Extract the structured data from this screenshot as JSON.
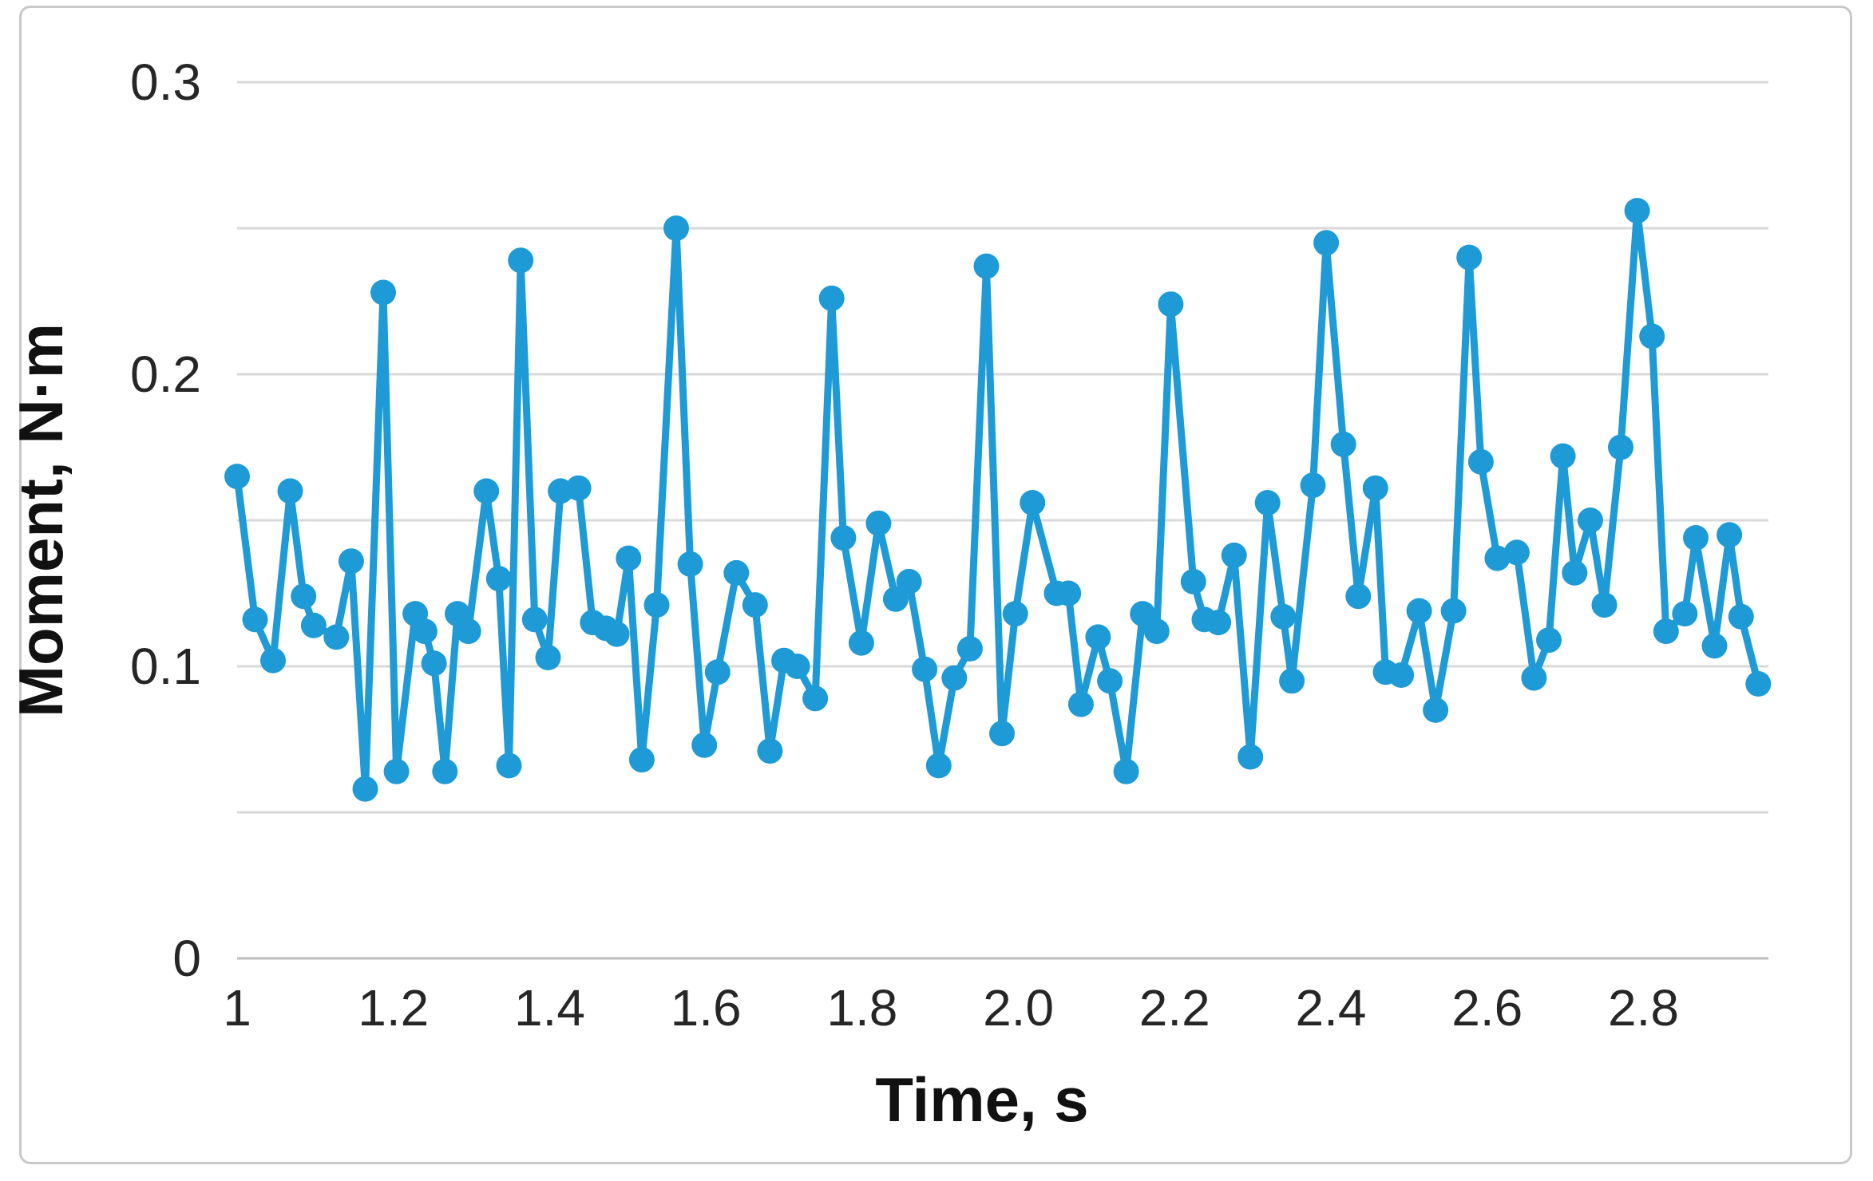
{
  "page": {
    "background_color": "#ffffff",
    "frame_border_color": "#c9c9c9"
  },
  "chart_data": {
    "type": "line",
    "title": "",
    "xlabel": "Time, s",
    "ylabel": "Moment, N·m",
    "xlim": [
      1.0,
      2.96
    ],
    "ylim": [
      0,
      0.3
    ],
    "grid": "horizontal-only",
    "legend": "none",
    "x_tick_values": [
      1,
      1.2,
      1.4,
      1.6,
      1.8,
      2.0,
      2.2,
      2.4,
      2.6,
      2.8
    ],
    "x_tick_labels": [
      "1",
      "1.2",
      "1.4",
      "1.6",
      "1.8",
      "2.0",
      "2.2",
      "2.4",
      "2.6",
      "2.8"
    ],
    "y_tick_values": [
      0,
      0.1,
      0.2,
      0.3
    ],
    "y_tick_labels": [
      "0",
      "0.1",
      "0.2",
      "0.3"
    ],
    "y_gridline_values": [
      0,
      0.05,
      0.1,
      0.15,
      0.2,
      0.25,
      0.3
    ],
    "gridline_color": "#d9d9d9",
    "axis_line_color": "#bdbdbd",
    "series": [
      {
        "name": "Moment",
        "color": "#1e9ad6",
        "marker": "circle",
        "points": [
          [
            1.0,
            0.165
          ],
          [
            1.023,
            0.116
          ],
          [
            1.046,
            0.102
          ],
          [
            1.068,
            0.16
          ],
          [
            1.085,
            0.124
          ],
          [
            1.098,
            0.114
          ],
          [
            1.127,
            0.11
          ],
          [
            1.146,
            0.136
          ],
          [
            1.164,
            0.058
          ],
          [
            1.187,
            0.228
          ],
          [
            1.204,
            0.064
          ],
          [
            1.228,
            0.118
          ],
          [
            1.24,
            0.112
          ],
          [
            1.252,
            0.101
          ],
          [
            1.266,
            0.064
          ],
          [
            1.282,
            0.118
          ],
          [
            1.296,
            0.112
          ],
          [
            1.319,
            0.16
          ],
          [
            1.335,
            0.13
          ],
          [
            1.348,
            0.066
          ],
          [
            1.363,
            0.239
          ],
          [
            1.381,
            0.116
          ],
          [
            1.398,
            0.103
          ],
          [
            1.414,
            0.16
          ],
          [
            1.437,
            0.161
          ],
          [
            1.455,
            0.115
          ],
          [
            1.472,
            0.113
          ],
          [
            1.486,
            0.111
          ],
          [
            1.501,
            0.137
          ],
          [
            1.518,
            0.068
          ],
          [
            1.537,
            0.121
          ],
          [
            1.562,
            0.25
          ],
          [
            1.58,
            0.135
          ],
          [
            1.598,
            0.073
          ],
          [
            1.615,
            0.098
          ],
          [
            1.639,
            0.132
          ],
          [
            1.663,
            0.121
          ],
          [
            1.682,
            0.071
          ],
          [
            1.7,
            0.102
          ],
          [
            1.717,
            0.1
          ],
          [
            1.74,
            0.089
          ],
          [
            1.761,
            0.226
          ],
          [
            1.776,
            0.144
          ],
          [
            1.799,
            0.108
          ],
          [
            1.821,
            0.149
          ],
          [
            1.843,
            0.123
          ],
          [
            1.86,
            0.129
          ],
          [
            1.88,
            0.099
          ],
          [
            1.898,
            0.066
          ],
          [
            1.918,
            0.096
          ],
          [
            1.938,
            0.106
          ],
          [
            1.959,
            0.237
          ],
          [
            1.979,
            0.077
          ],
          [
            1.996,
            0.118
          ],
          [
            2.018,
            0.156
          ],
          [
            2.049,
            0.125
          ],
          [
            2.064,
            0.125
          ],
          [
            2.08,
            0.087
          ],
          [
            2.102,
            0.11
          ],
          [
            2.117,
            0.095
          ],
          [
            2.138,
            0.064
          ],
          [
            2.159,
            0.118
          ],
          [
            2.177,
            0.112
          ],
          [
            2.195,
            0.224
          ],
          [
            2.224,
            0.129
          ],
          [
            2.238,
            0.116
          ],
          [
            2.256,
            0.115
          ],
          [
            2.276,
            0.138
          ],
          [
            2.297,
            0.069
          ],
          [
            2.319,
            0.156
          ],
          [
            2.339,
            0.117
          ],
          [
            2.35,
            0.095
          ],
          [
            2.377,
            0.162
          ],
          [
            2.394,
            0.245
          ],
          [
            2.416,
            0.176
          ],
          [
            2.435,
            0.124
          ],
          [
            2.457,
            0.161
          ],
          [
            2.47,
            0.098
          ],
          [
            2.49,
            0.097
          ],
          [
            2.513,
            0.119
          ],
          [
            2.534,
            0.085
          ],
          [
            2.557,
            0.119
          ],
          [
            2.577,
            0.24
          ],
          [
            2.592,
            0.17
          ],
          [
            2.613,
            0.137
          ],
          [
            2.638,
            0.139
          ],
          [
            2.66,
            0.096
          ],
          [
            2.679,
            0.109
          ],
          [
            2.697,
            0.172
          ],
          [
            2.712,
            0.132
          ],
          [
            2.732,
            0.15
          ],
          [
            2.75,
            0.121
          ],
          [
            2.771,
            0.175
          ],
          [
            2.792,
            0.256
          ],
          [
            2.811,
            0.213
          ],
          [
            2.829,
            0.112
          ],
          [
            2.853,
            0.118
          ],
          [
            2.867,
            0.144
          ],
          [
            2.891,
            0.107
          ],
          [
            2.91,
            0.145
          ],
          [
            2.925,
            0.117
          ],
          [
            2.947,
            0.094
          ]
        ]
      }
    ]
  }
}
